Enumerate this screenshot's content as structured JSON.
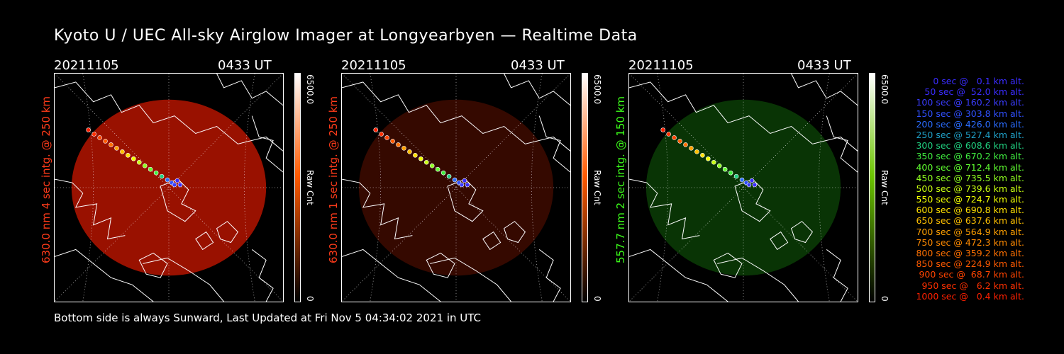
{
  "title": "Kyoto U / UEC All-sky Airglow Imager at Longyearbyen — Realtime Data",
  "footer": "Bottom side is always Sunward, Last Updated at Fri Nov  5 04:34:02 2021 in UTC",
  "panels": [
    {
      "date": "20211105",
      "time": "0433 UT",
      "label": "630.0 nm 4 sec intg. @ 250 km",
      "label_color": "#ff3b1a",
      "cbar_max": "6500.0",
      "cbar_unit": "Raw Cnt",
      "cbar_min": "0",
      "cbar_color": "#ff5a00",
      "glow_color": "#b41400",
      "glow_opacity": 0.85
    },
    {
      "date": "20211105",
      "time": "0433 UT",
      "label": "630.0 nm 1 sec intg. @ 250 km",
      "label_color": "#ff3b1a",
      "cbar_max": "6500.0",
      "cbar_unit": "Raw Cnt",
      "cbar_min": "0",
      "cbar_color": "#ff5a00",
      "glow_color": "#3b0a00",
      "glow_opacity": 0.9
    },
    {
      "date": "20211105",
      "time": "0433 UT",
      "label": "557.7 nm 2 sec intg. @ 150 km",
      "label_color": "#3cff1a",
      "cbar_max": "6500.0",
      "cbar_unit": "Raw Cnt",
      "cbar_min": "0",
      "cbar_color": "#6bc400",
      "glow_color": "#0a3a05",
      "glow_opacity": 0.9
    }
  ],
  "legend": [
    {
      "text": "0 sec @   0.1 km alt.",
      "color": "#3a2cff"
    },
    {
      "text": "50 sec @  52.0 km alt.",
      "color": "#3a2cff"
    },
    {
      "text": "100 sec @ 160.2 km alt.",
      "color": "#3a3cff"
    },
    {
      "text": "150 sec @ 303.8 km alt.",
      "color": "#3050ff"
    },
    {
      "text": "200 sec @ 426.0 km alt.",
      "color": "#2a6cff"
    },
    {
      "text": "250 sec @ 527.4 km alt.",
      "color": "#1fa0c8"
    },
    {
      "text": "300 sec @ 608.6 km alt.",
      "color": "#20d080"
    },
    {
      "text": "350 sec @ 670.2 km alt.",
      "color": "#40ee40"
    },
    {
      "text": "400 sec @ 712.4 km alt.",
      "color": "#60ff30"
    },
    {
      "text": "450 sec @ 735.5 km alt.",
      "color": "#90ff20"
    },
    {
      "text": "500 sec @ 739.6 km alt.",
      "color": "#c8ff10"
    },
    {
      "text": "550 sec @ 724.7 km alt.",
      "color": "#f0ff00"
    },
    {
      "text": "600 sec @ 690.8 km alt.",
      "color": "#ffe000"
    },
    {
      "text": "650 sec @ 637.6 km alt.",
      "color": "#ffc000"
    },
    {
      "text": "700 sec @ 564.9 km alt.",
      "color": "#ffa000"
    },
    {
      "text": "750 sec @ 472.3 km alt.",
      "color": "#ff8a00"
    },
    {
      "text": "800 sec @ 359.2 km alt.",
      "color": "#ff7000"
    },
    {
      "text": "850 sec @ 224.9 km alt.",
      "color": "#ff5a00"
    },
    {
      "text": "900 sec @  68.7 km alt.",
      "color": "#ff4400"
    },
    {
      "text": "950 sec @   6.2 km alt.",
      "color": "#ff3000"
    },
    {
      "text": "1000 sec @   0.4 km alt.",
      "color": "#ff2000"
    }
  ]
}
